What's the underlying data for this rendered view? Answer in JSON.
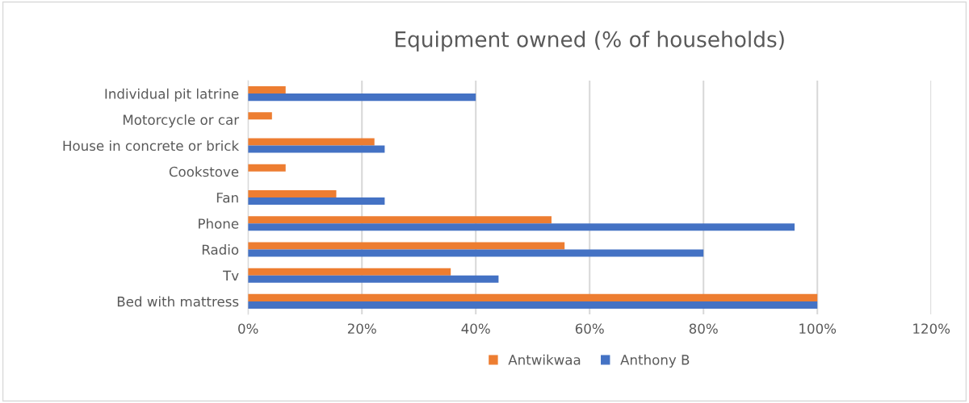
{
  "chart_data": {
    "type": "bar",
    "orientation": "horizontal",
    "title": "Equipment owned (% of households)",
    "categories": [
      "Individual pit latrine",
      "Motorcycle or car",
      "House in concrete or brick",
      "Cookstove",
      "Fan",
      "Phone",
      "Radio",
      "Tv",
      "Bed with mattress"
    ],
    "series": [
      {
        "name": "Antwikwaa",
        "color": "#ed7d31",
        "values": [
          6.6,
          4.2,
          22.2,
          6.6,
          15.5,
          53.3,
          55.6,
          35.6,
          100
        ]
      },
      {
        "name": "Anthony B",
        "color": "#4472c4",
        "values": [
          40,
          0,
          24,
          0,
          24,
          96,
          80,
          44,
          100
        ]
      }
    ],
    "xlim": [
      0,
      120
    ],
    "xticks": [
      {
        "value": 0,
        "label": "0%"
      },
      {
        "value": 20,
        "label": "20%"
      },
      {
        "value": 40,
        "label": "40%"
      },
      {
        "value": 60,
        "label": "60%"
      },
      {
        "value": 80,
        "label": "80%"
      },
      {
        "value": 100,
        "label": "100%"
      },
      {
        "value": 120,
        "label": "120%"
      }
    ],
    "grid": "x",
    "legend": "bottom"
  }
}
